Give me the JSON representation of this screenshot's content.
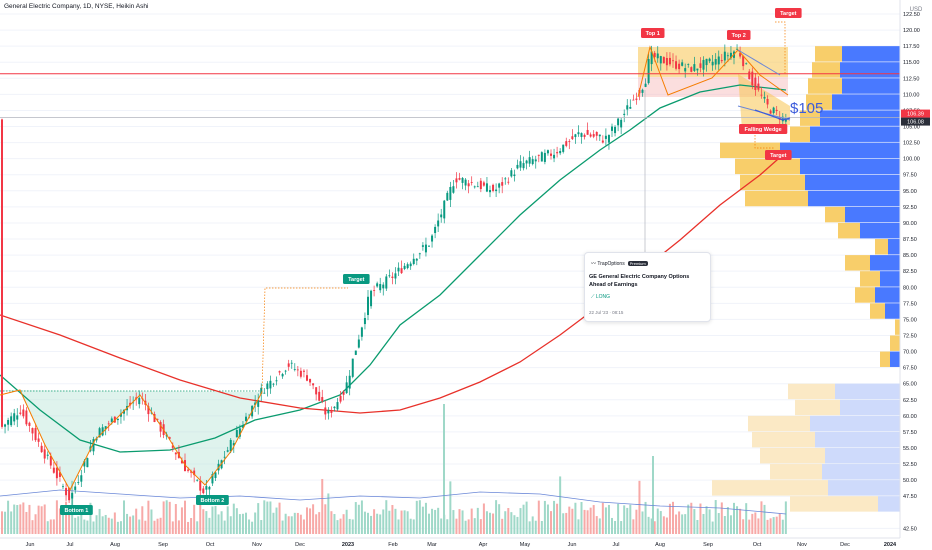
{
  "header": {
    "title": "General Electric Company, 1D, NYSE, Heikin Ashi"
  },
  "chart_data": {
    "type": "candlestick",
    "currency": "USD",
    "y_axis": {
      "range": [
        41,
        122.5
      ],
      "ticks": [
        "122.50",
        "120.00",
        "117.50",
        "115.00",
        "112.50",
        "110.00",
        "107.50",
        "105.00",
        "102.50",
        "100.00",
        "97.50",
        "95.00",
        "92.50",
        "90.00",
        "87.50",
        "85.00",
        "82.50",
        "80.00",
        "77.50",
        "75.00",
        "72.50",
        "70.00",
        "67.50",
        "65.00",
        "62.50",
        "60.00",
        "57.50",
        "55.00",
        "52.50",
        "50.00",
        "47.50",
        "42.50"
      ]
    },
    "x_axis": {
      "ticks": [
        "Jun",
        "Jul",
        "Aug",
        "Sep",
        "Oct",
        "Nov",
        "Dec",
        "2023",
        "Feb",
        "Mar",
        "Apr",
        "May",
        "Jun",
        "Jul",
        "Aug",
        "Sep",
        "Oct",
        "Nov",
        "Dec",
        "2024"
      ]
    },
    "price_labels": [
      {
        "text": "106.39",
        "color": "#f23645"
      },
      {
        "text": "106.08",
        "color": "#2a2e39"
      }
    ],
    "annotation_text": {
      "price_target": "$105",
      "source": "TrapOptions",
      "source_badge": "Premium",
      "headline": "GE General Electric Company Options Ahead of Earnings",
      "direction": "LONG",
      "timestamp": "22 Jul '23 · 08:15"
    },
    "pattern_labels": {
      "bottom1": "Bottom 1",
      "bottom2": "Bottom 2",
      "target_bull": "Target",
      "top1": "Top 1",
      "top2": "Top 2",
      "target_top": "Target",
      "falling_wedge": "Falling Wedge",
      "target_bottom": "Target"
    },
    "horizontal_levels": [
      {
        "value": 113.2,
        "color": "#f23645"
      },
      {
        "value": 106.4,
        "color": "#b2b5be"
      }
    ],
    "colors": {
      "up": "#089981",
      "down": "#f23645",
      "ma50": "#0a9b6e",
      "ma200": "#e8312a",
      "volume_profile_up": "#2962ff",
      "volume_profile_down": "#f7c550"
    }
  }
}
